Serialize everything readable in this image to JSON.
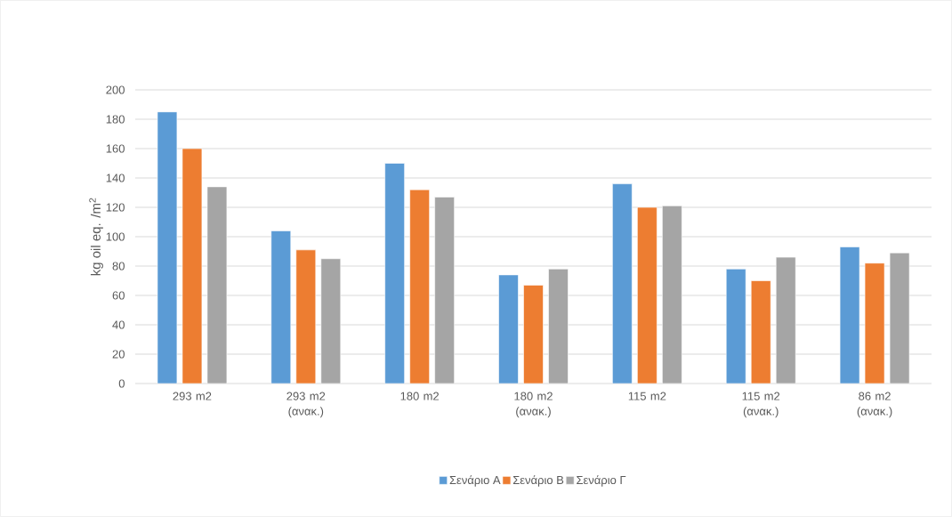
{
  "chart_data": {
    "type": "bar",
    "ylabel": "kg oil eq. /m$^{2}$",
    "categories": [
      "293 m2",
      "293 m2 (ανακ.)",
      "180 m2",
      "180 m2 (ανακ.)",
      "115 m2",
      "115 m2 (ανακ.)",
      "86 m2 (ανακ.)"
    ],
    "series": [
      {
        "name": "Σενάριο Α",
        "color": "#5b9bd5",
        "values": [
          185,
          104,
          150,
          74,
          136,
          78,
          93
        ]
      },
      {
        "name": "Σενάριο Β",
        "color": "#ed7d31",
        "values": [
          160,
          91,
          132,
          67,
          120,
          70,
          82
        ]
      },
      {
        "name": "Σενάριο Γ",
        "color": "#a5a5a5",
        "values": [
          134,
          85,
          127,
          78,
          121,
          86,
          89
        ]
      }
    ],
    "ylim": [
      0,
      200
    ],
    "yticks": [
      0,
      20,
      40,
      60,
      80,
      100,
      120,
      140,
      160,
      180,
      200
    ],
    "grid": "y",
    "legend": "bottom"
  }
}
